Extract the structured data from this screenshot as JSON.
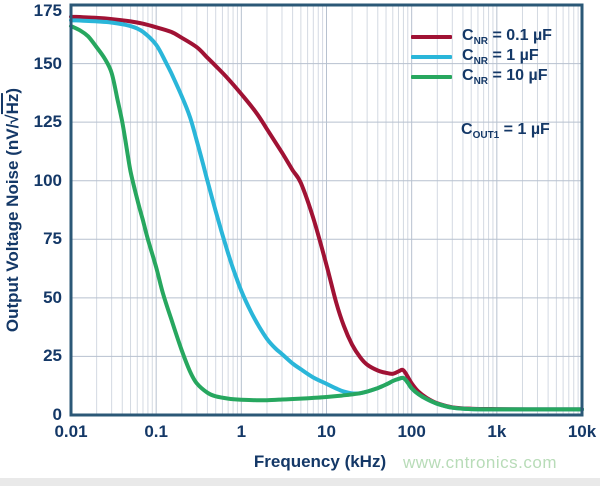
{
  "y_axis": {
    "title_pre": "Output Voltage Noise (nV/",
    "radical": "√",
    "radicand": "Hz",
    "title_post": ")",
    "ticks": [
      "175",
      "150",
      "125",
      "100",
      "75",
      "50",
      "25",
      "0"
    ],
    "tick_values": [
      175,
      150,
      125,
      100,
      75,
      50,
      25,
      0
    ]
  },
  "x_axis": {
    "title": "Frequency (kHz)",
    "ticks": [
      "0.01",
      "0.1",
      "1",
      "10",
      "100",
      "1k",
      "10k"
    ],
    "tick_values": [
      0.01,
      0.1,
      1,
      10,
      100,
      1000,
      10000
    ]
  },
  "legend": {
    "items": [
      {
        "prefix": "C",
        "sub": "NR",
        "rest": " = 0.1 µF",
        "color": "#a01234"
      },
      {
        "prefix": "C",
        "sub": "NR",
        "rest": " = 1 µF",
        "color": "#2ab6d9"
      },
      {
        "prefix": "C",
        "sub": "NR",
        "rest": " = 10 µF",
        "color": "#27a75f"
      }
    ]
  },
  "annotation": {
    "prefix": "C",
    "sub": "OUT1",
    "rest": " = 1 µF"
  },
  "watermark": "www.cntronics.com",
  "colors": {
    "text": "#143867",
    "frame": "#2b5877",
    "grid_major": "#b7c1cf",
    "grid_minor": "#d3d9e2",
    "watermark": "#b8dcb8",
    "bottom_strip": "#e9e9e9",
    "background": "#ffffff"
  },
  "chart_data": {
    "type": "line",
    "xscale": "log",
    "xlim": [
      0.01,
      10000
    ],
    "ylim": [
      0,
      175
    ],
    "xlabel": "Frequency (kHz)",
    "ylabel": "Output Voltage Noise (nV/√Hz)",
    "grid": true,
    "legend_position": "upper right",
    "series": [
      {
        "name": "CNR = 0.1 µF",
        "color": "#a01234",
        "points": [
          [
            0.01,
            170
          ],
          [
            0.02,
            169.5
          ],
          [
            0.03,
            169
          ],
          [
            0.05,
            168
          ],
          [
            0.07,
            167
          ],
          [
            0.1,
            165.5
          ],
          [
            0.15,
            163.5
          ],
          [
            0.2,
            161
          ],
          [
            0.3,
            157
          ],
          [
            0.4,
            152.5
          ],
          [
            0.5,
            149
          ],
          [
            0.7,
            143.5
          ],
          [
            1,
            137
          ],
          [
            1.5,
            129
          ],
          [
            2,
            122
          ],
          [
            3,
            112
          ],
          [
            4,
            104.5
          ],
          [
            5,
            99
          ],
          [
            7,
            84
          ],
          [
            10,
            64
          ],
          [
            13,
            48
          ],
          [
            16,
            38
          ],
          [
            20,
            30
          ],
          [
            25,
            24.5
          ],
          [
            30,
            21.5
          ],
          [
            40,
            19
          ],
          [
            50,
            18
          ],
          [
            60,
            17.6
          ],
          [
            70,
            18.6
          ],
          [
            78,
            19.3
          ],
          [
            85,
            17.8
          ],
          [
            100,
            13.5
          ],
          [
            120,
            10
          ],
          [
            150,
            7.3
          ],
          [
            200,
            5
          ],
          [
            300,
            3.3
          ],
          [
            500,
            2.7
          ],
          [
            1000,
            2.5
          ],
          [
            3000,
            2.4
          ],
          [
            10000,
            2.4
          ]
        ]
      },
      {
        "name": "CNR = 1 µF",
        "color": "#2ab6d9",
        "points": [
          [
            0.01,
            168.5
          ],
          [
            0.02,
            168
          ],
          [
            0.03,
            167.5
          ],
          [
            0.05,
            166
          ],
          [
            0.07,
            163.5
          ],
          [
            0.1,
            158
          ],
          [
            0.13,
            150.5
          ],
          [
            0.15,
            146
          ],
          [
            0.2,
            136
          ],
          [
            0.25,
            127
          ],
          [
            0.3,
            117
          ],
          [
            0.35,
            108
          ],
          [
            0.4,
            100
          ],
          [
            0.5,
            87
          ],
          [
            0.6,
            77
          ],
          [
            0.7,
            69
          ],
          [
            0.8,
            62.5
          ],
          [
            1,
            53
          ],
          [
            1.3,
            44
          ],
          [
            1.6,
            38
          ],
          [
            2,
            32.5
          ],
          [
            2.5,
            28.5
          ],
          [
            3,
            26
          ],
          [
            4,
            22
          ],
          [
            5,
            19.5
          ],
          [
            7,
            16
          ],
          [
            10,
            13.3
          ],
          [
            13,
            11.3
          ],
          [
            16,
            10
          ],
          [
            20,
            9.2
          ],
          [
            25,
            9.3
          ],
          [
            30,
            10
          ],
          [
            40,
            11.5
          ],
          [
            50,
            13
          ],
          [
            60,
            14.5
          ],
          [
            70,
            15.4
          ],
          [
            80,
            15.8
          ],
          [
            90,
            13.8
          ],
          [
            100,
            11.4
          ],
          [
            120,
            8.9
          ],
          [
            150,
            6.8
          ],
          [
            200,
            4.8
          ],
          [
            300,
            3.1
          ],
          [
            500,
            2.5
          ],
          [
            1000,
            2.4
          ],
          [
            3000,
            2.4
          ],
          [
            10000,
            2.4
          ]
        ]
      },
      {
        "name": "CNR = 10 µF",
        "color": "#27a75f",
        "points": [
          [
            0.01,
            166
          ],
          [
            0.013,
            164
          ],
          [
            0.016,
            161.5
          ],
          [
            0.02,
            157
          ],
          [
            0.025,
            152
          ],
          [
            0.03,
            146
          ],
          [
            0.035,
            135
          ],
          [
            0.04,
            125
          ],
          [
            0.045,
            114
          ],
          [
            0.05,
            104
          ],
          [
            0.06,
            92
          ],
          [
            0.07,
            83
          ],
          [
            0.08,
            75
          ],
          [
            0.1,
            63
          ],
          [
            0.12,
            52
          ],
          [
            0.15,
            41
          ],
          [
            0.2,
            27.5
          ],
          [
            0.25,
            18.5
          ],
          [
            0.3,
            13.5
          ],
          [
            0.4,
            9.5
          ],
          [
            0.5,
            8
          ],
          [
            0.7,
            7
          ],
          [
            1,
            6.5
          ],
          [
            1.5,
            6.3
          ],
          [
            2,
            6.3
          ],
          [
            3,
            6.6
          ],
          [
            5,
            7
          ],
          [
            7,
            7.3
          ],
          [
            10,
            7.7
          ],
          [
            15,
            8.3
          ],
          [
            20,
            8.8
          ],
          [
            25,
            9.3
          ],
          [
            30,
            10
          ],
          [
            40,
            11.5
          ],
          [
            50,
            13
          ],
          [
            60,
            14.5
          ],
          [
            70,
            15.4
          ],
          [
            80,
            15.8
          ],
          [
            90,
            13.8
          ],
          [
            100,
            11.4
          ],
          [
            120,
            8.9
          ],
          [
            150,
            6.8
          ],
          [
            200,
            4.8
          ],
          [
            300,
            3.1
          ],
          [
            500,
            2.5
          ],
          [
            1000,
            2.4
          ],
          [
            3000,
            2.4
          ],
          [
            10000,
            2.4
          ]
        ]
      }
    ]
  }
}
